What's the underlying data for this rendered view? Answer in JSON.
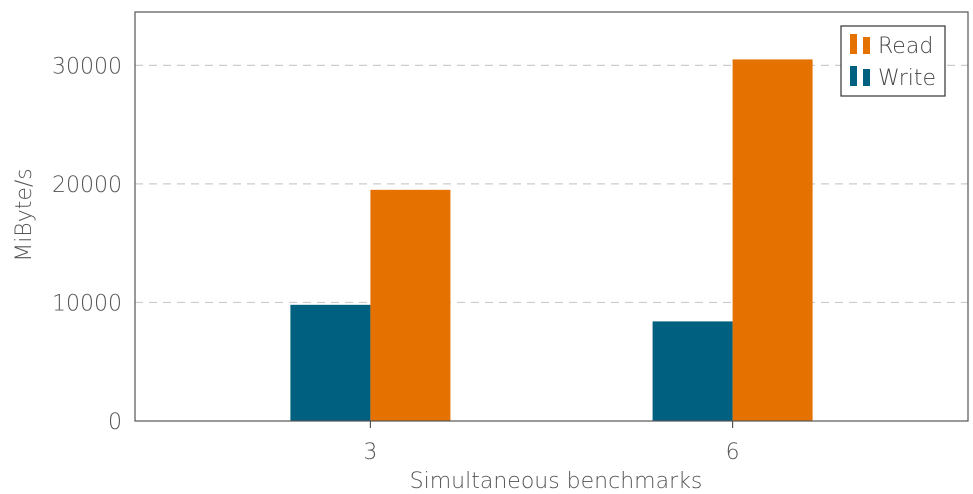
{
  "chart_data": {
    "type": "bar",
    "categories": [
      "3",
      "6"
    ],
    "series": [
      {
        "name": "Write",
        "values": [
          9800,
          8400
        ],
        "color": "#00607f"
      },
      {
        "name": "Read",
        "values": [
          19500,
          30500
        ],
        "color": "#e57100"
      }
    ],
    "xlabel": "Simultaneous benchmarks",
    "ylabel": "MiByte/s",
    "ylim": [
      0,
      34500
    ],
    "yticks": [
      0,
      10000,
      20000,
      30000
    ],
    "grid": true,
    "legend_position": "top-right",
    "legend_order": [
      "Read",
      "Write"
    ]
  }
}
